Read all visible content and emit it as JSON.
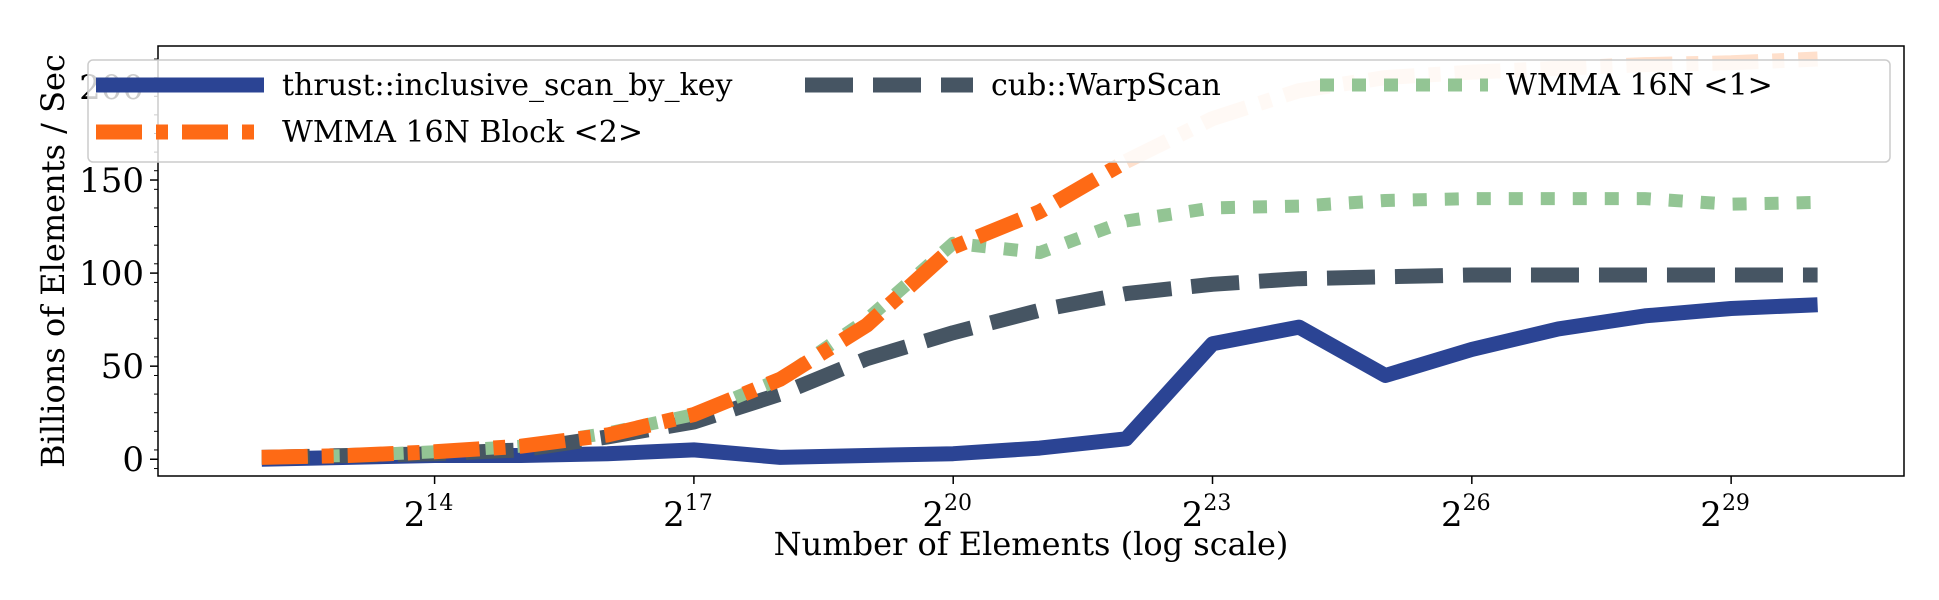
{
  "chart_data": {
    "type": "line",
    "xlabel": "Number of Elements (log scale)",
    "ylabel": "Billions of Elements / Sec",
    "x_scale": "log2",
    "x_exponents": [
      12,
      13,
      14,
      15,
      16,
      17,
      18,
      19,
      20,
      21,
      22,
      23,
      24,
      25,
      26,
      27,
      28,
      29,
      30
    ],
    "xlim_exponent": [
      10.8,
      31
    ],
    "x_ticks": [
      {
        "base": "2",
        "exp": "14",
        "value": 14
      },
      {
        "base": "2",
        "exp": "17",
        "value": 17
      },
      {
        "base": "2",
        "exp": "20",
        "value": 20
      },
      {
        "base": "2",
        "exp": "23",
        "value": 23
      },
      {
        "base": "2",
        "exp": "26",
        "value": 26
      },
      {
        "base": "2",
        "exp": "29",
        "value": 29
      }
    ],
    "ylim": [
      -9,
      222
    ],
    "y_ticks": [
      {
        "label": "0",
        "value": 0
      },
      {
        "label": "50",
        "value": 50
      },
      {
        "label": "100",
        "value": 100
      },
      {
        "label": "150",
        "value": 150
      },
      {
        "label": "200",
        "value": 200
      }
    ],
    "legend_position": "top",
    "series": [
      {
        "name": "thrust::inclusive_scan_by_key",
        "color": "#2b4494",
        "style": "solid",
        "values": [
          0,
          1,
          2,
          2,
          3,
          5,
          1,
          2,
          3,
          6,
          11,
          62,
          71,
          45,
          59,
          70,
          77,
          81,
          83
        ]
      },
      {
        "name": "cub::WarpScan",
        "color": "#465563",
        "style": "dashed",
        "values": [
          1,
          2,
          3,
          5,
          12,
          20,
          35,
          54,
          68,
          80,
          89,
          94,
          97,
          98,
          99,
          99,
          99,
          99,
          99
        ]
      },
      {
        "name": "WMMA 16N <1>",
        "color": "#93c594",
        "style": "dotted",
        "values": [
          1,
          2,
          4,
          7,
          14,
          24,
          43,
          75,
          116,
          111,
          128,
          135,
          136,
          139,
          140,
          140,
          140,
          137,
          138
        ]
      },
      {
        "name": "WMMA 16N Block <2>",
        "color": "#fe6a15",
        "style": "dashdot",
        "faded_from_index": 10,
        "faded_color": "#ffe0cc",
        "values": [
          1,
          2,
          4,
          7,
          13,
          24,
          43,
          72,
          114,
          133,
          160,
          183,
          198,
          205,
          208,
          210,
          212,
          213,
          215
        ]
      }
    ]
  }
}
